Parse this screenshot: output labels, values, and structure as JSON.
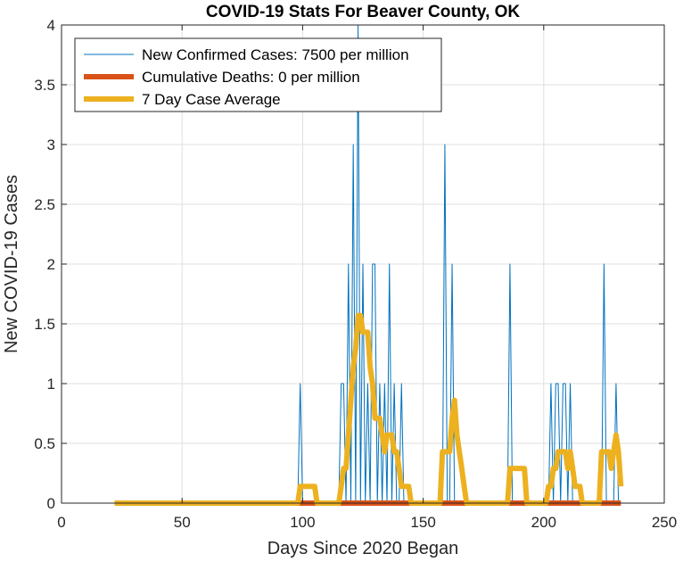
{
  "chart_data": {
    "type": "line",
    "title": "COVID-19 Stats For Beaver County, OK",
    "xlabel": "Days Since 2020 Began",
    "ylabel": "New COVID-19 Cases",
    "xlim": [
      0,
      250
    ],
    "ylim": [
      0,
      4
    ],
    "xticks": [
      0,
      50,
      100,
      150,
      200,
      250
    ],
    "yticks": [
      0,
      0.5,
      1,
      1.5,
      2,
      2.5,
      3,
      3.5,
      4
    ],
    "grid": true,
    "legend_position": "top-left",
    "colors": {
      "new_cases": "#0072BD",
      "deaths": "#D95319",
      "average": "#EDB120",
      "grid": "#dfdfdf",
      "axis": "#262626"
    },
    "series": [
      {
        "name": "New Confirmed Cases: 7500 per million",
        "x": [
          22,
          98,
          99,
          100,
          115,
          116,
          117,
          118,
          119,
          120,
          121,
          122,
          123,
          124,
          125,
          126,
          127,
          128,
          129,
          130,
          131,
          132,
          133,
          134,
          135,
          136,
          137,
          138,
          139,
          140,
          141,
          142,
          143,
          158,
          159,
          160,
          161,
          162,
          163,
          164,
          185,
          186,
          187,
          202,
          203,
          204,
          205,
          206,
          207,
          208,
          209,
          210,
          211,
          212,
          213,
          224,
          225,
          226,
          229,
          230,
          231,
          232
        ],
        "y": [
          0,
          0,
          1,
          0,
          0,
          1,
          1,
          0,
          2,
          0,
          3,
          0,
          4,
          0,
          2,
          0,
          1,
          0,
          2,
          2,
          0,
          1,
          0,
          1,
          0,
          2,
          0,
          1,
          0,
          0,
          1,
          0,
          0,
          0,
          3,
          0,
          0,
          2,
          0,
          0,
          0,
          2,
          0,
          0,
          1,
          0,
          1,
          1,
          0,
          1,
          1,
          0,
          1,
          0,
          0,
          0,
          2,
          0,
          0,
          1,
          0,
          0
        ]
      },
      {
        "name": "Cumulative Deaths: 0 per million",
        "x": [
          22,
          232
        ],
        "y": [
          0,
          0
        ]
      },
      {
        "name": "7 Day Case Average",
        "x": [
          22,
          98,
          99,
          100,
          105,
          106,
          115,
          116,
          117,
          118,
          119,
          120,
          121,
          122,
          123,
          124,
          125,
          126,
          127,
          128,
          129,
          130,
          131,
          132,
          133,
          134,
          135,
          136,
          137,
          138,
          139,
          140,
          141,
          142,
          143,
          144,
          145,
          146,
          147,
          148,
          149,
          157,
          158,
          159,
          160,
          161,
          162,
          163,
          164,
          165,
          166,
          167,
          168,
          169,
          185,
          186,
          192,
          193,
          201,
          202,
          203,
          204,
          205,
          206,
          207,
          208,
          209,
          210,
          211,
          212,
          213,
          214,
          215,
          216,
          217,
          218,
          219,
          223,
          224,
          225,
          226,
          227,
          228,
          229,
          230,
          231,
          232
        ],
        "y": [
          0,
          0,
          0.14,
          0.14,
          0.14,
          0,
          0,
          0.14,
          0.29,
          0.29,
          0.57,
          0.86,
          1.14,
          1.29,
          1.57,
          1.57,
          1.43,
          1.43,
          1.43,
          1.14,
          1,
          0.71,
          0.71,
          0.71,
          0.57,
          0.43,
          0.57,
          0.57,
          0.57,
          0.43,
          0.43,
          0.29,
          0.14,
          0.14,
          0.14,
          0.14,
          0,
          0,
          0,
          0,
          0,
          0,
          0.43,
          0.43,
          0.43,
          0.43,
          0.71,
          0.86,
          0.57,
          0.43,
          0.29,
          0.14,
          0,
          0,
          0,
          0.29,
          0.29,
          0,
          0,
          0.14,
          0.14,
          0.29,
          0.29,
          0.43,
          0.43,
          0.43,
          0.43,
          0.29,
          0.43,
          0.29,
          0.14,
          0.14,
          0.14,
          0,
          0,
          0,
          0,
          0,
          0.43,
          0.43,
          0.43,
          0.43,
          0.29,
          0.43,
          0.57,
          0.43,
          0.14
        ]
      }
    ]
  }
}
